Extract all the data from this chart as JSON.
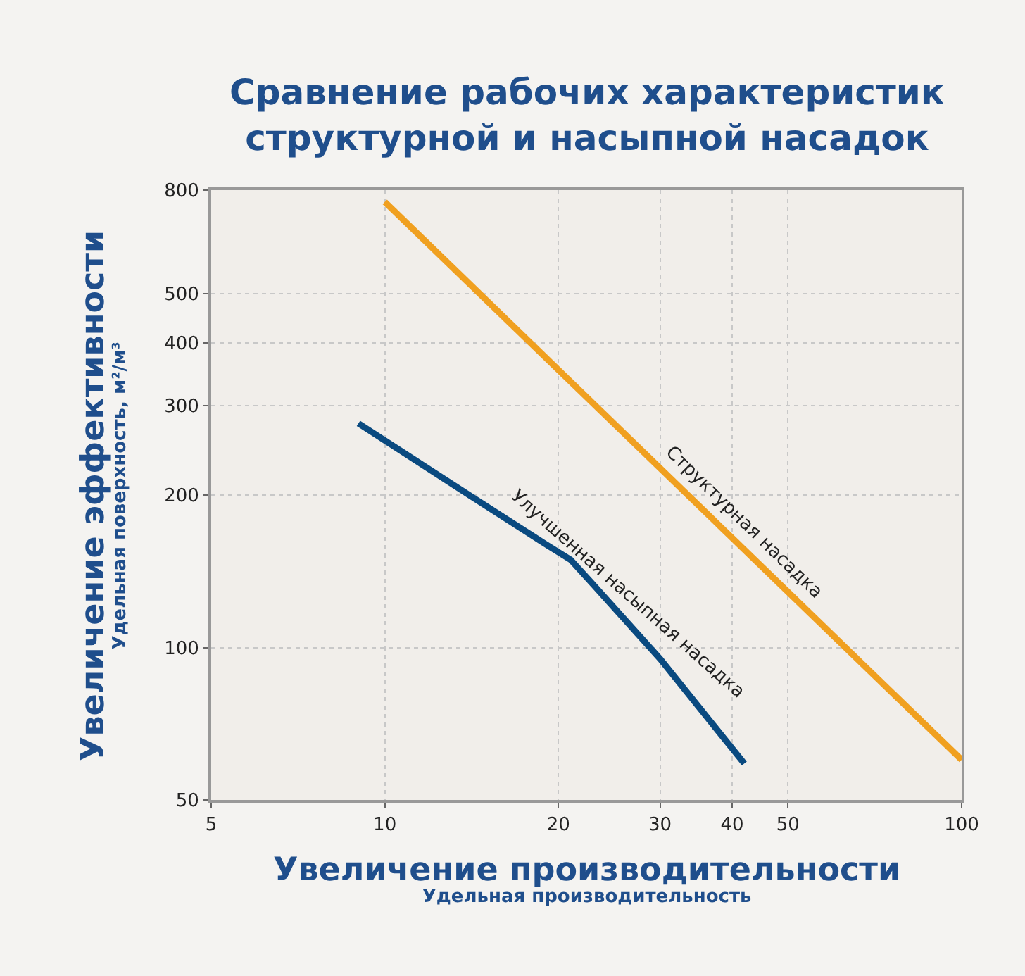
{
  "chart_data": {
    "type": "line",
    "title": "Сравнение рабочих характеристик\nструктурной и насыпной насадок",
    "xlabel": "Увеличение производительности\nУдельная производительность",
    "ylabel": "Увеличение эффективности\nУдельная поверхность, м²/м³",
    "log": "xy",
    "grid": true,
    "legend": false,
    "marker": "none",
    "line_style": "solid",
    "xlim": [
      5,
      100
    ],
    "xticks": [
      5,
      10,
      20,
      30,
      40,
      50,
      100
    ],
    "ylim": [
      50,
      800
    ],
    "yticks": [
      50,
      100,
      200,
      300,
      400,
      500,
      800
    ],
    "series": [
      {
        "name": "Структурная насадка",
        "color": "#f0a020",
        "x": [
          10,
          100
        ],
        "values": [
          758,
          60
        ]
      },
      {
        "name": "Улучшенная насыпная насадка",
        "color": "#0a4a80",
        "x": [
          9,
          14,
          19,
          21,
          23,
          30,
          42
        ],
        "values": [
          277,
          200,
          160,
          149,
          133,
          95,
          59
        ]
      }
    ]
  }
}
